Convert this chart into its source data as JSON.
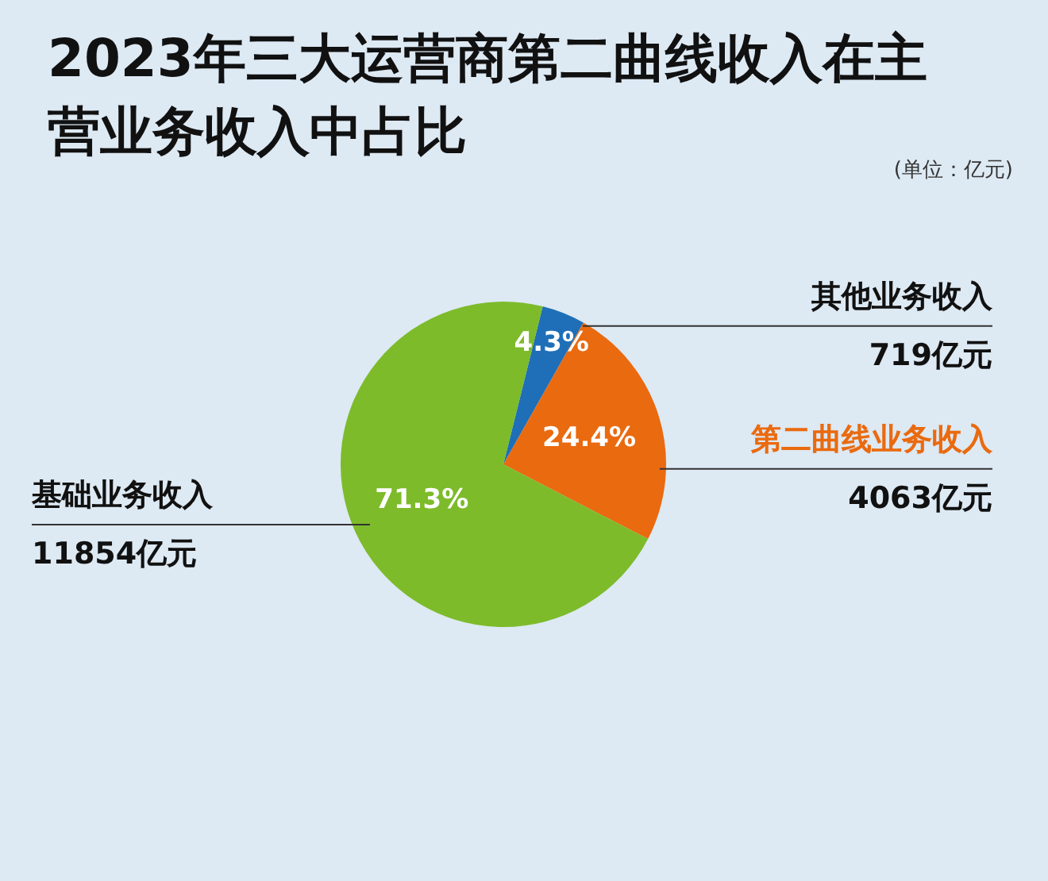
{
  "chart_data": {
    "type": "pie",
    "title": "2023年三大运营商第二曲线收入在主营业务收入中占比",
    "categories": [
      "其他业务收入",
      "第二曲线业务收入",
      "基础业务收入"
    ],
    "values": [
      4.3,
      24.4,
      71.3
    ],
    "colors": [
      "#1f6fb8",
      "#ea6a0f",
      "#7dbb2a"
    ],
    "value_labels": [
      "4.3%",
      "24.4%",
      "71.3%"
    ],
    "annotations": [
      "(单位：亿元)",
      {
        "text": "719亿元",
        "x": "其他业务收入"
      },
      {
        "text": "4063亿元",
        "x": "第二曲线业务收入"
      },
      {
        "text": "11854亿元",
        "x": "基础业务收入"
      }
    ],
    "legend": false
  }
}
